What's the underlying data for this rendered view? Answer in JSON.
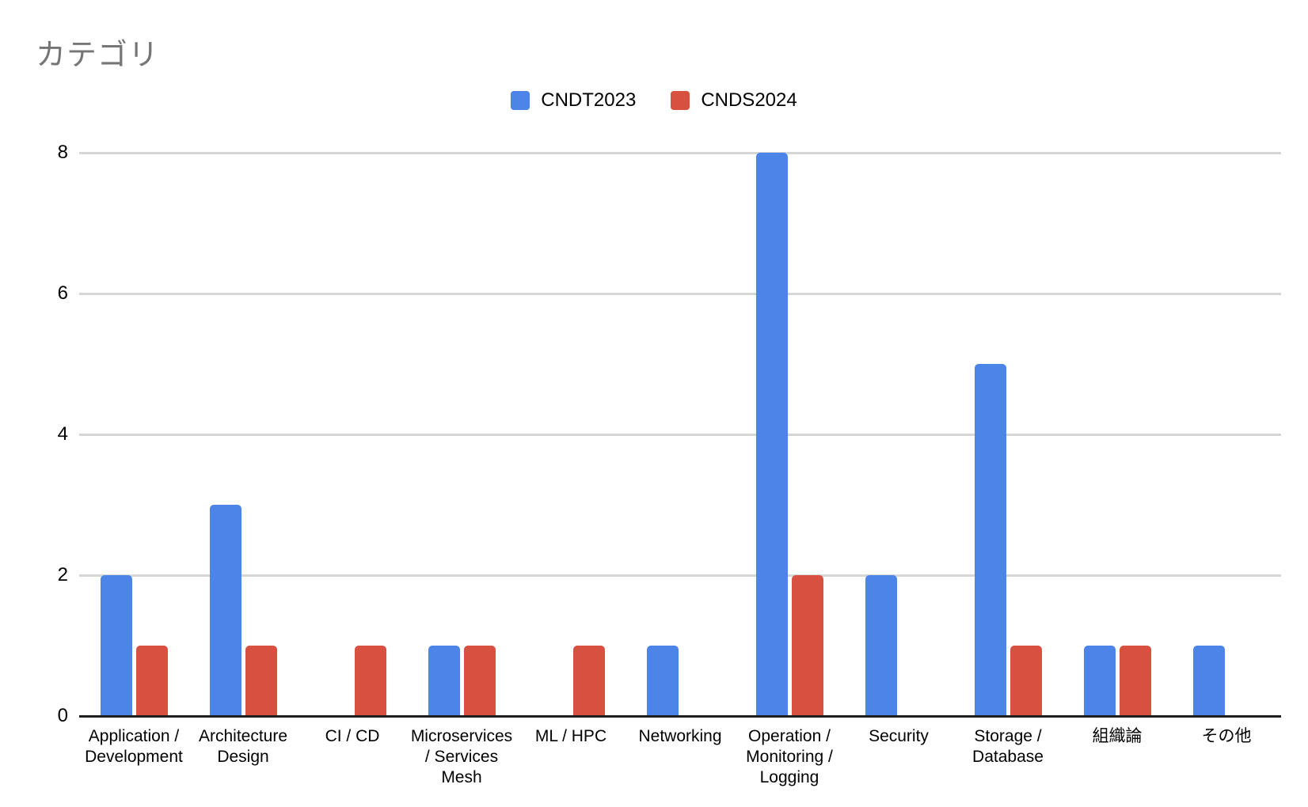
{
  "title": "カテゴリ",
  "colors": {
    "series1": "#4C84E8",
    "series2": "#D8503F",
    "title_text": "#757575",
    "axis_text": "#000000",
    "gridline": "#D6D6D6",
    "axis_line": "#1F1F1F",
    "background": "#FFFFFF"
  },
  "chart_data": {
    "type": "bar",
    "title": "カテゴリ",
    "xlabel": "",
    "ylabel": "",
    "categories": [
      "Application / Development",
      "Architecture Design",
      "CI / CD",
      "Microservices / Services Mesh",
      "ML / HPC",
      "Networking",
      "Operation / Monitoring / Logging",
      "Security",
      "Storage / Database",
      "組織論",
      "その他"
    ],
    "series": [
      {
        "name": "CNDT2023",
        "color": "#4C84E8",
        "values": [
          2,
          3,
          0,
          1,
          0,
          1,
          8,
          2,
          5,
          1,
          1
        ]
      },
      {
        "name": "CNDS2024",
        "color": "#D8503F",
        "values": [
          1,
          1,
          1,
          1,
          1,
          0,
          2,
          0,
          1,
          1,
          0
        ]
      }
    ],
    "ylim": [
      0,
      8
    ],
    "yticks": [
      0,
      2,
      4,
      6,
      8
    ],
    "grid": true,
    "legend_position": "top-center"
  }
}
